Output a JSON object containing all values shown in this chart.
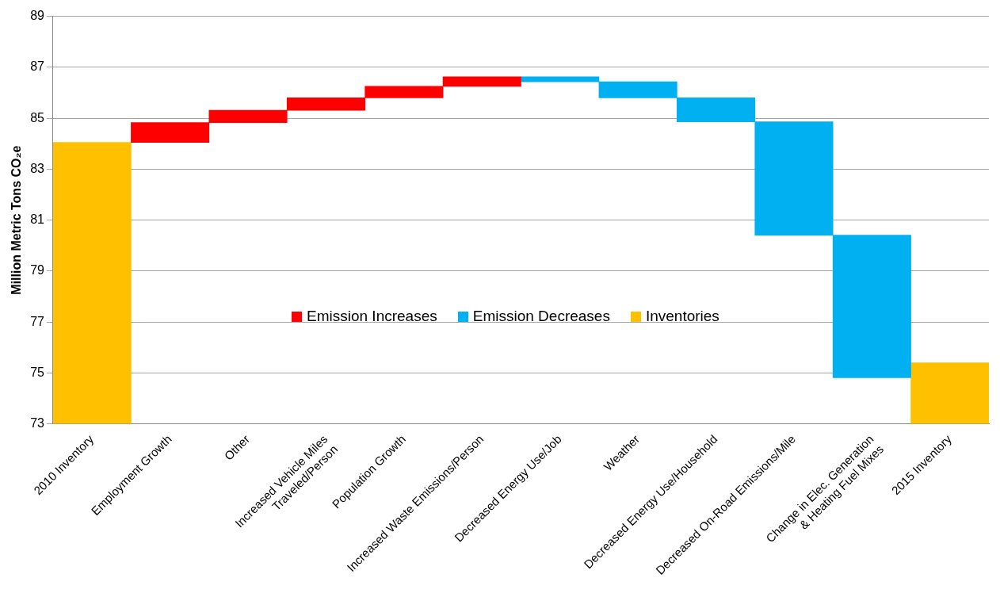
{
  "chart_data": {
    "type": "bar",
    "ylabel": "Million Metric Tons CO₂e",
    "categories": [
      "2010 Inventory",
      "Employment Growth",
      "Other",
      "Increased Vehicle Miles Traveled/Person",
      "Population Growth",
      "Increased Waste Emissions/Person",
      "Decreased Energy Use/Job",
      "Weather",
      "Decreased Energy Use/Household",
      "Decreased On-Road Emissions/Mile",
      "Change in Elec. Generation & Heating Fuel Mixes",
      "2015 Inventory"
    ],
    "series": [
      {
        "name": "Emission Increases",
        "color": "#ff0000",
        "base": [
          null,
          84.05,
          84.83,
          85.31,
          85.8,
          86.25,
          null,
          null,
          null,
          null,
          null,
          null
        ],
        "values": [
          null,
          0.78,
          0.48,
          0.49,
          0.45,
          0.38,
          null,
          null,
          null,
          null,
          null,
          null
        ]
      },
      {
        "name": "Emission Decreases",
        "color": "#00b0f0",
        "base": [
          null,
          null,
          null,
          null,
          null,
          null,
          86.63,
          86.43,
          85.8,
          84.86,
          80.41,
          null
        ],
        "values": [
          null,
          null,
          null,
          null,
          null,
          null,
          -0.2,
          -0.63,
          -0.94,
          -4.45,
          -5.6,
          null
        ]
      },
      {
        "name": "Inventories",
        "color": "#ffc000",
        "base": [
          73,
          null,
          null,
          null,
          null,
          null,
          null,
          null,
          null,
          null,
          null,
          73
        ],
        "values": [
          11.05,
          null,
          null,
          null,
          null,
          null,
          null,
          null,
          null,
          null,
          null,
          2.4
        ]
      }
    ],
    "ylim": [
      73,
      89
    ],
    "yticks": [
      73,
      75,
      77,
      79,
      81,
      83,
      85,
      87,
      89
    ],
    "grid": "y",
    "legend": "bottom"
  }
}
